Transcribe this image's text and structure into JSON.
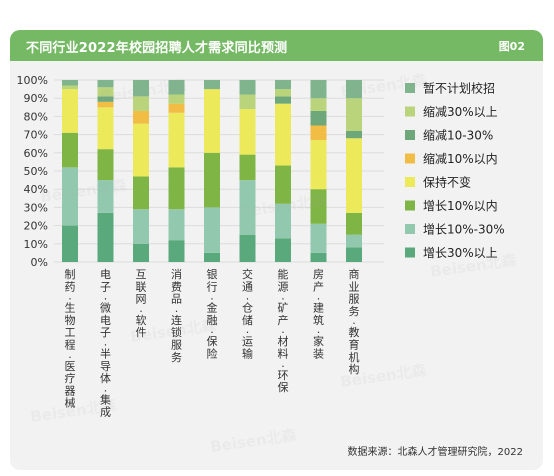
{
  "header": {
    "title": "不同行业2022年校园招聘人才需求同比预测",
    "fig_label": "图02"
  },
  "source": "数据来源：北森人才管理研究院，2022",
  "watermark": "Beisen北森",
  "chart_data": {
    "type": "bar",
    "stacked": true,
    "ylim": [
      0,
      100
    ],
    "yticks": [
      "0%",
      "10%",
      "20%",
      "30%",
      "40%",
      "50%",
      "60%",
      "70%",
      "80%",
      "90%",
      "100%"
    ],
    "grid": true,
    "legend_position": "right",
    "categories": [
      "制药·生物工程·医疗器械",
      "电子·微电子·半导体·集成",
      "互联网·软件",
      "消费品·连锁服务",
      "银行·金融·保险",
      "交通·仓储·运输",
      "能源·矿产·材料·环保",
      "房产·建筑·家装",
      "商业服务·教育机构"
    ],
    "series": [
      {
        "name": "增长30%以上",
        "color": "#5aa97c",
        "values": [
          20,
          27,
          10,
          12,
          5,
          15,
          13,
          5,
          8
        ]
      },
      {
        "name": "增长10%-30%",
        "color": "#92c9ae",
        "values": [
          32,
          18,
          19,
          17,
          25,
          30,
          19,
          16,
          7
        ]
      },
      {
        "name": "增长10%以内",
        "color": "#7fb545",
        "values": [
          19,
          17,
          18,
          23,
          30,
          14,
          21,
          19,
          12
        ]
      },
      {
        "name": "保持不变",
        "color": "#ece95b",
        "values": [
          24,
          23,
          29,
          30,
          35,
          25,
          34,
          27,
          41
        ]
      },
      {
        "name": "缩减10%以内",
        "color": "#f2bd45",
        "values": [
          0,
          3,
          7,
          5,
          0,
          0,
          0,
          8,
          0
        ]
      },
      {
        "name": "缩减10-30%",
        "color": "#6ea87a",
        "values": [
          0,
          3,
          0,
          0,
          0,
          0,
          4,
          8,
          4
        ]
      },
      {
        "name": "缩减30%以上",
        "color": "#b9d47a",
        "values": [
          2,
          5,
          8,
          5,
          0,
          8,
          4,
          7,
          18
        ]
      },
      {
        "name": "暂不计划校招",
        "color": "#7fb48d",
        "values": [
          3,
          4,
          9,
          8,
          5,
          8,
          5,
          10,
          10
        ]
      }
    ]
  }
}
